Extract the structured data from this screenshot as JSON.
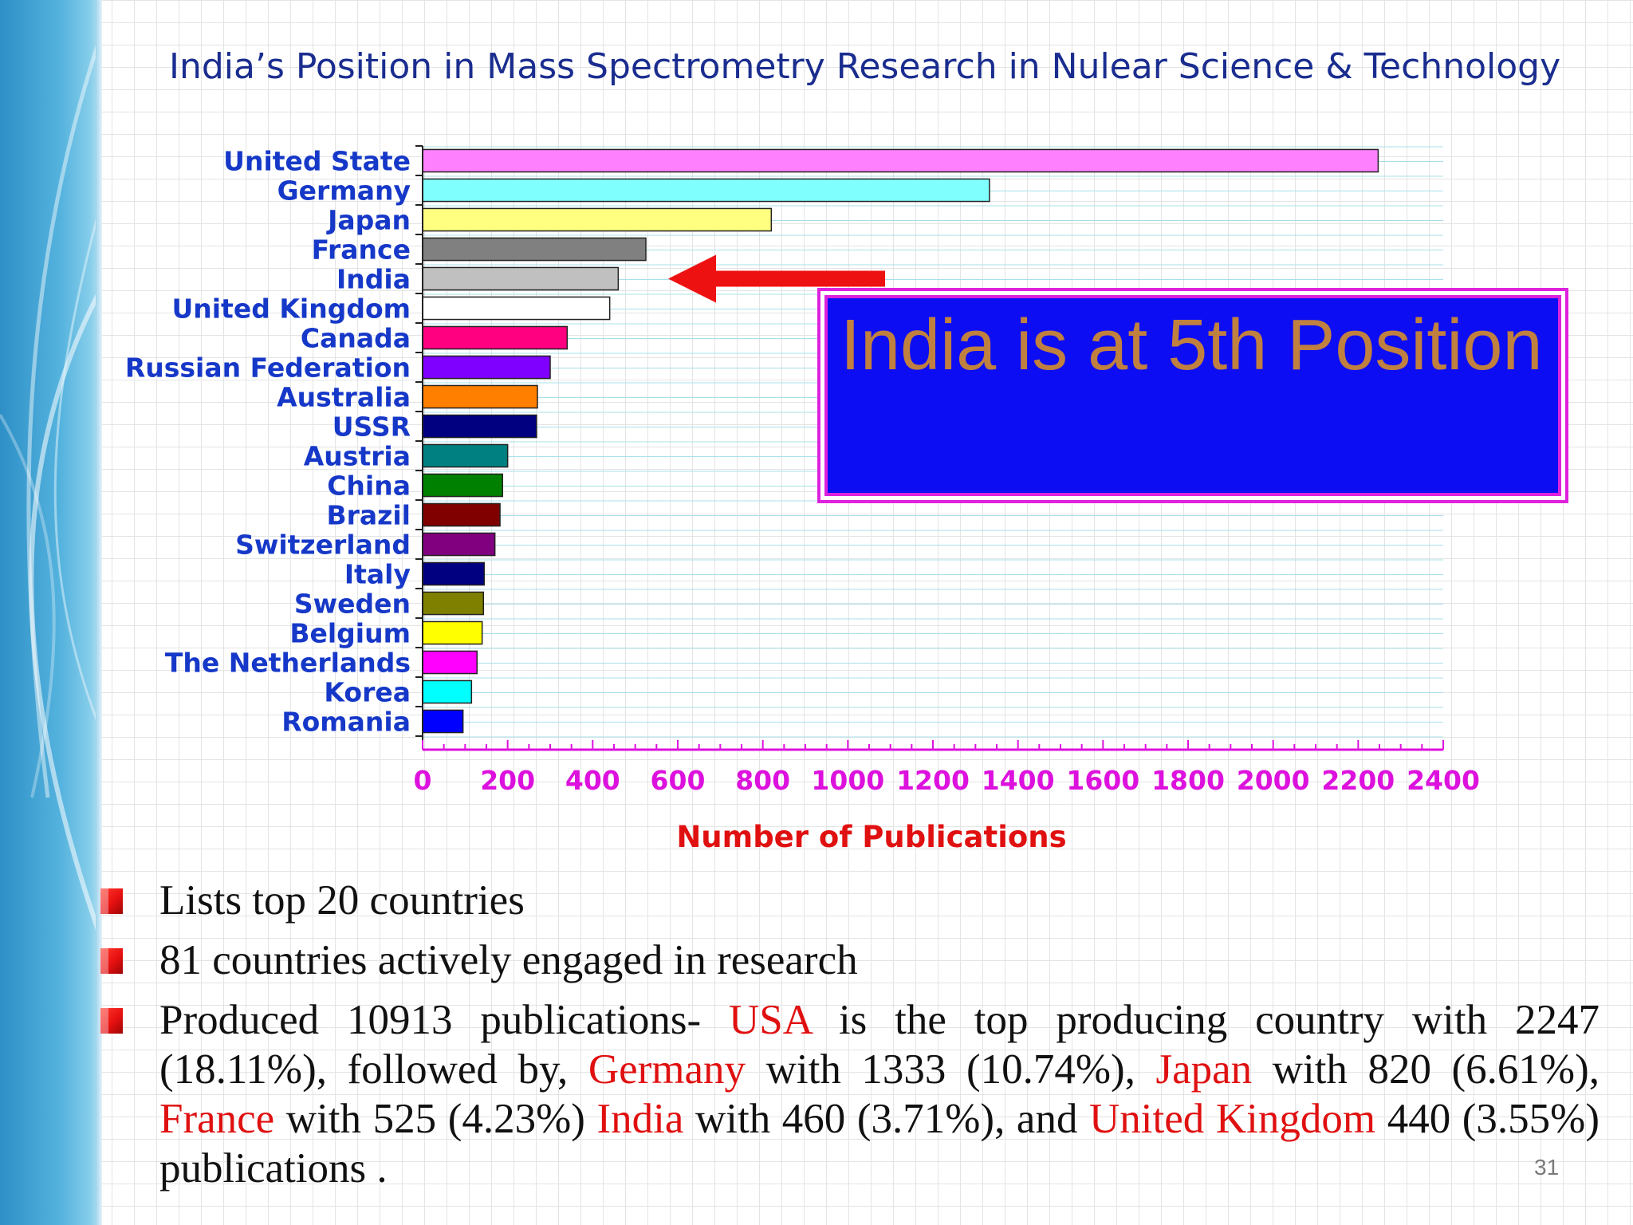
{
  "slide": {
    "title": "India’s Position in Mass Spectrometry Research in Nulear Science & Technology",
    "page_number": "31"
  },
  "callout": {
    "text": "India is at 5th Position"
  },
  "bullets": [
    {
      "segments": [
        {
          "text": "Lists top 20 countries",
          "red": false
        }
      ]
    },
    {
      "segments": [
        {
          "text": "81 countries  actively engaged in  research",
          "red": false
        }
      ]
    },
    {
      "segments": [
        {
          "text": "Produced 10913 publications- ",
          "red": false
        },
        {
          "text": "USA",
          "red": true
        },
        {
          "text": " is the top producing country with 2247 (18.11%), followed by, ",
          "red": false
        },
        {
          "text": "Germany",
          "red": true
        },
        {
          "text": " with 1333 (10.74%), ",
          "red": false
        },
        {
          "text": "Japan",
          "red": true
        },
        {
          "text": " with 820 (6.61%), ",
          "red": false
        },
        {
          "text": "France",
          "red": true
        },
        {
          "text": " with 525 (4.23%) ",
          "red": false
        },
        {
          "text": "India",
          "red": true
        },
        {
          "text": " with 460 (3.71%), and ",
          "red": false
        },
        {
          "text": "United Kingdom",
          "red": true
        },
        {
          "text": " 440 (3.55%) publications .",
          "red": false
        }
      ]
    }
  ],
  "colors": {
    "title": "#1a2d8f",
    "category_labels": "#1638c8",
    "axis_ticks": "#dd11dd",
    "xlabel": "#e01010",
    "callout_background": "#0d0df3",
    "callout_border": "#dd22dd",
    "callout_text": "#c0803f",
    "arrow": "#ee1111"
  },
  "chart_data": {
    "type": "bar",
    "orientation": "horizontal",
    "categories": [
      "United State",
      "Germany",
      "Japan",
      "France",
      "India",
      "United Kingdom",
      "Canada",
      "Russian Federation",
      "Australia",
      "USSR",
      "Austria",
      "China",
      "Brazil",
      "Switzerland",
      "Italy",
      "Sweden",
      "Belgium",
      "The Netherlands",
      "Korea",
      "Romania"
    ],
    "values": [
      2247,
      1333,
      820,
      525,
      460,
      440,
      340,
      300,
      270,
      268,
      200,
      188,
      182,
      170,
      145,
      143,
      140,
      128,
      115,
      95
    ],
    "bar_colors": [
      "#ff80ff",
      "#80ffff",
      "#ffff80",
      "#808080",
      "#c0c0c0",
      "#ffffff",
      "#ff0080",
      "#8000ff",
      "#ff8000",
      "#000080",
      "#008080",
      "#008000",
      "#800000",
      "#800080",
      "#000080",
      "#808000",
      "#ffff00",
      "#ff00ff",
      "#00ffff",
      "#0000ff"
    ],
    "title": "",
    "xlabel": "Number of Publications",
    "ylabel": "",
    "xlim": [
      0,
      2400
    ],
    "x_ticks": [
      0,
      200,
      400,
      600,
      800,
      1000,
      1200,
      1400,
      1600,
      1800,
      2000,
      2200,
      2400
    ],
    "minor_tick_step": 50,
    "grid": true,
    "legend": "none",
    "annotation": {
      "type": "arrow",
      "points_to": "India"
    }
  }
}
